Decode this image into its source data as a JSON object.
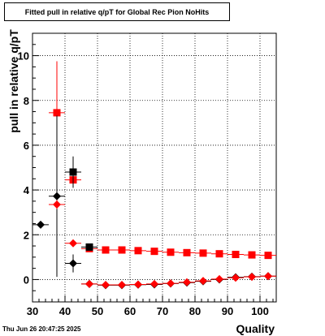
{
  "chart_data": {
    "type": "scatter",
    "title": "Fitted pull in relative q/pT for Global Rec Pion NoHits",
    "xlabel": "Quality",
    "ylabel": "pull in relative q/pT",
    "xlim": [
      30,
      105
    ],
    "ylim": [
      -1,
      11
    ],
    "xticks": [
      30,
      40,
      50,
      60,
      70,
      80,
      90,
      100
    ],
    "yticks": [
      0,
      2,
      4,
      6,
      8,
      10
    ],
    "grid": true,
    "series": [
      {
        "marker": "square",
        "color": "#ff0000",
        "x": [
          37.5,
          42.5,
          47.5,
          52.5,
          57.5,
          62.5,
          67.5,
          72.5,
          77.5,
          82.5,
          87.5,
          92.5,
          97.5,
          102.5
        ],
        "y": [
          7.45,
          4.45,
          1.38,
          1.32,
          1.32,
          1.29,
          1.26,
          1.22,
          1.2,
          1.18,
          1.15,
          1.12,
          1.1,
          1.08
        ],
        "yerr": [
          2.3,
          0.35,
          0.06,
          0.04,
          0.04,
          0.03,
          0.03,
          0.03,
          0.03,
          0.03,
          0.03,
          0.03,
          0.03,
          0.03
        ]
      },
      {
        "marker": "square",
        "color": "#000000",
        "x": [
          42.5,
          47.5
        ],
        "y": [
          4.8,
          1.45
        ],
        "yerr": [
          0.7,
          0.1
        ]
      },
      {
        "marker": "diamond",
        "color": "#000000",
        "x": [
          32.5,
          37.5,
          42.5,
          47.5,
          52.5,
          57.5,
          62.5,
          67.5,
          72.5,
          77.5,
          82.5,
          87.5,
          92.5,
          97.5,
          102.5
        ],
        "y": [
          2.45,
          3.72,
          0.72,
          -0.2,
          -0.25,
          -0.25,
          -0.23,
          -0.22,
          -0.18,
          -0.14,
          -0.08,
          0.0,
          0.1,
          0.13,
          0.15
        ],
        "yerr": [
          0.0,
          3.6,
          0.4,
          0.04,
          0.03,
          0.03,
          0.03,
          0.03,
          0.03,
          0.03,
          0.03,
          0.03,
          0.03,
          0.03,
          0.03
        ]
      },
      {
        "marker": "diamond",
        "color": "#ff0000",
        "x": [
          37.5,
          42.5,
          47.5,
          52.5,
          57.5,
          62.5,
          67.5,
          72.5,
          77.5,
          82.5,
          87.5,
          92.5,
          97.5,
          102.5
        ],
        "y": [
          3.35,
          1.62,
          -0.2,
          -0.24,
          -0.24,
          -0.22,
          -0.2,
          -0.17,
          -0.12,
          -0.06,
          0.02,
          0.08,
          0.12,
          0.15
        ],
        "yerr": [
          0.2,
          0.1,
          0.03,
          0.03,
          0.03,
          0.03,
          0.03,
          0.03,
          0.03,
          0.03,
          0.03,
          0.03,
          0.03,
          0.03
        ]
      }
    ]
  },
  "footer": {
    "timestamp": "Thu Jun 26 20:47:25 2025"
  }
}
